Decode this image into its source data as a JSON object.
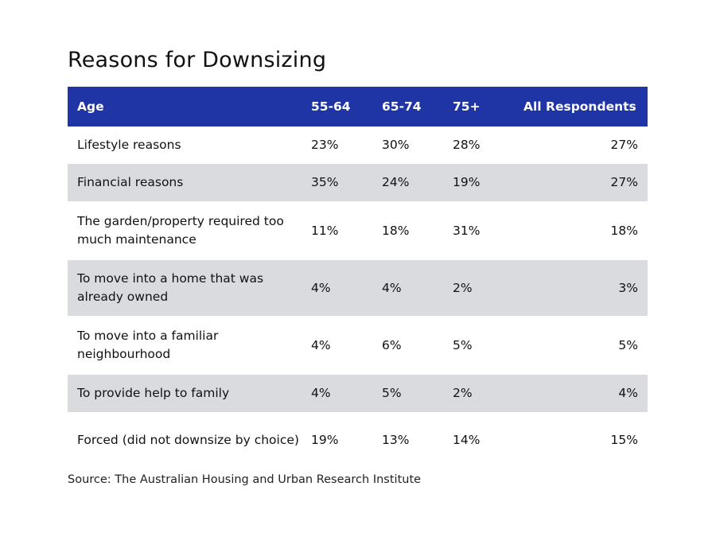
{
  "title": "Reasons for Downsizing",
  "source": "Source: The Australian Housing and Urban Research Institute",
  "colors": {
    "header_bg": "#1f34a5",
    "header_text": "#ffffff",
    "stripe_bg": "#d9dbdf"
  },
  "chart_data": {
    "type": "table",
    "title": "Reasons for Downsizing",
    "columns": [
      "Age",
      "55-64",
      "65-74",
      "75+",
      "All Respondents"
    ],
    "rows": [
      {
        "label": "Lifestyle reasons",
        "values": [
          "23%",
          "30%",
          "28%",
          "27%"
        ]
      },
      {
        "label": "Financial reasons",
        "values": [
          "35%",
          "24%",
          "19%",
          "27%"
        ]
      },
      {
        "label": "The garden/property required too much maintenance",
        "values": [
          "11%",
          "18%",
          "31%",
          "18%"
        ]
      },
      {
        "label": "To move into a home that was already owned",
        "values": [
          "4%",
          "4%",
          "2%",
          "3%"
        ]
      },
      {
        "label": "To move into a familiar neighbourhood",
        "values": [
          "4%",
          "6%",
          "5%",
          "5%"
        ]
      },
      {
        "label": "To provide help to family",
        "values": [
          "4%",
          "5%",
          "2%",
          "4%"
        ]
      },
      {
        "label": "Forced (did not downsize by choice)",
        "values": [
          "19%",
          "13%",
          "14%",
          "15%"
        ]
      }
    ]
  }
}
